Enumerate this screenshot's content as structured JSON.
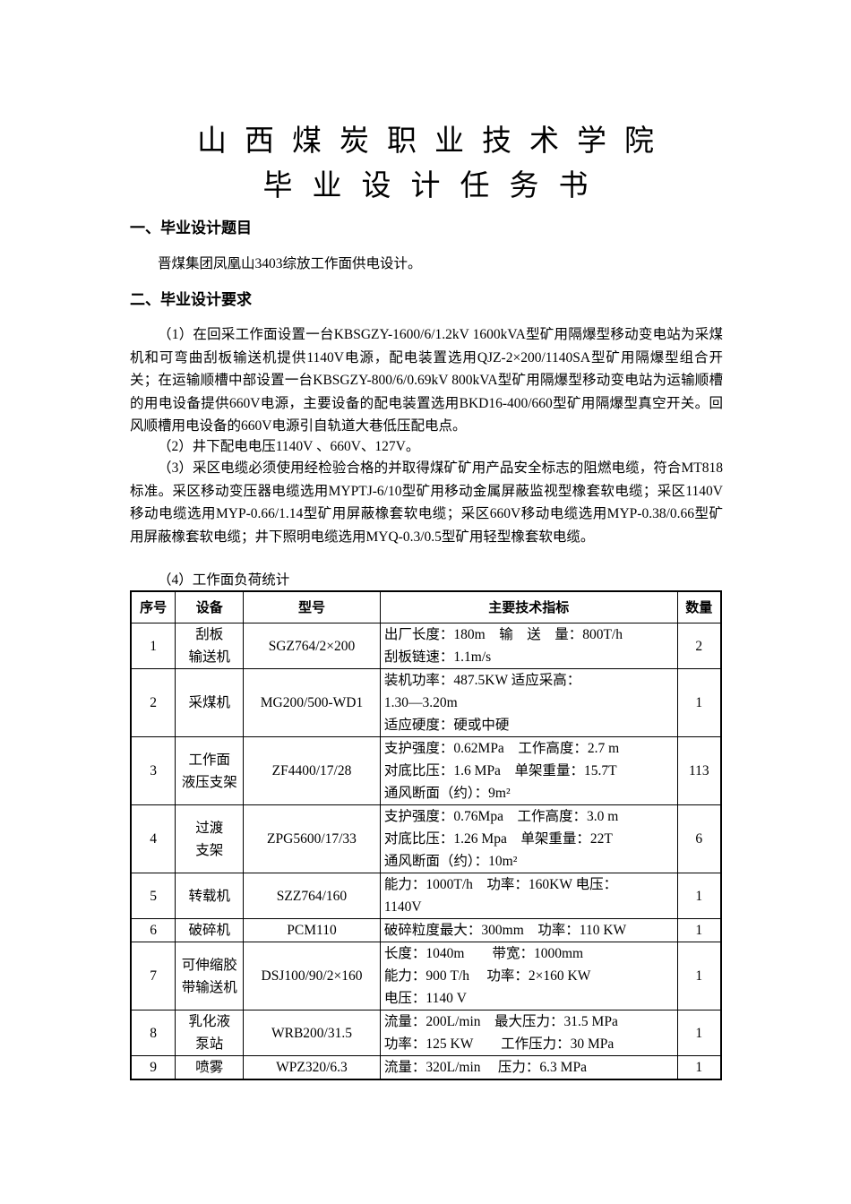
{
  "title1": "山西煤炭职业技术学院",
  "title2": "毕业设计任务书",
  "s1": {
    "heading": "一、毕业设计题目",
    "text": "晋煤集团凤凰山3403综放工作面供电设计。"
  },
  "s2": {
    "heading": "二、毕业设计要求",
    "p1": "（1）在回采工作面设置一台KBSGZY-1600/6/1.2kV 1600kVA型矿用隔爆型移动变电站为采煤机和可弯曲刮板输送机提供1140V电源，配电装置选用QJZ-2×200/1140SA型矿用隔爆型组合开关；在运输顺槽中部设置一台KBSGZY-800/6/0.69kV 800kVA型矿用隔爆型移动变电站为运输顺槽的用电设备提供660V电源，主要设备的配电装置选用BKD16-400/660型矿用隔爆型真空开关。回风顺槽用电设备的660V电源引自轨道大巷低压配电点。",
    "p2": "（2）井下配电电压1140V 、660V、127V。",
    "p3": "（3）采区电缆必须使用经检验合格的并取得煤矿矿用产品安全标志的阻燃电缆，符合MT818标准。采区移动变压器电缆选用MYPTJ-6/10型矿用移动金属屏蔽监视型橡套软电缆；采区1140V移动电缆选用MYP-0.66/1.14型矿用屏蔽橡套软电缆；采区660V移动电缆选用MYP-0.38/0.66型矿用屏蔽橡套软电缆；井下照明电缆选用MYQ-0.3/0.5型矿用轻型橡套软电缆。",
    "p4": "（4）工作面负荷统计"
  },
  "table": {
    "headers": [
      "序号",
      "设备",
      "型号",
      "主要技术指标",
      "数量"
    ],
    "rows": [
      [
        "1",
        "刮板\n输送机",
        "SGZ764/2×200",
        "出厂长度：180m　输　送　量：800T/h\n刮板链速：1.1m/s",
        "2"
      ],
      [
        "2",
        "采煤机",
        "MG200/500-WD1",
        "装机功率：487.5KW  适应采高：\n1.30—3.20m\n适应硬度：硬或中硬",
        "1"
      ],
      [
        "3",
        "工作面\n液压支架",
        "ZF4400/17/28",
        "支护强度：0.62MPa　工作高度：2.7 m\n对底比压：1.6 MPa　单架重量：15.7T\n通风断面（约）：9m²",
        "113"
      ],
      [
        "4",
        "过渡\n支架",
        "ZPG5600/17/33",
        "支护强度：0.76Mpa　工作高度：3.0 m\n对底比压：1.26 Mpa　单架重量：22T\n通风断面（约）：10m²",
        "6"
      ],
      [
        "5",
        "转载机",
        "SZZ764/160",
        "能力：1000T/h　功率：160KW 电压：\n1140V",
        "1"
      ],
      [
        "6",
        "破碎机",
        "PCM110",
        "破碎粒度最大：300mm　功率：110 KW",
        "1"
      ],
      [
        "7",
        "可伸缩胶\n带输送机",
        "DSJ100/90/2×160",
        "长度：1040m　　带宽：1000mm\n能力：900 T/h　 功率：2×160 KW\n电压：1140 V",
        "1"
      ],
      [
        "8",
        "乳化液\n泵站",
        "WRB200/31.5",
        "流量：200L/min　最大压力：31.5 MPa\n功率：125 KW　　工作压力：30 MPa",
        "1"
      ],
      [
        "9",
        "喷雾",
        "WPZ320/6.3",
        "流量：320L/min　 压力：6.3 MPa",
        "1"
      ]
    ]
  }
}
